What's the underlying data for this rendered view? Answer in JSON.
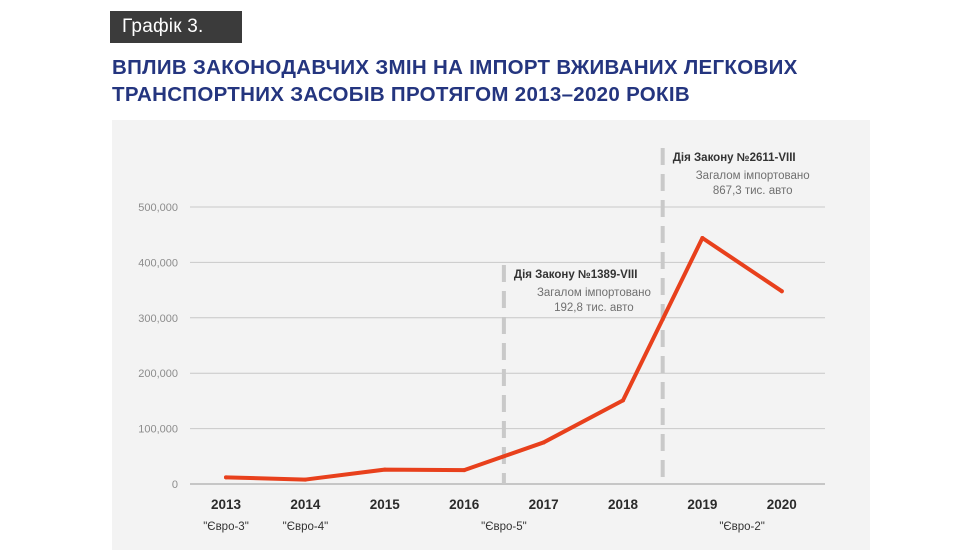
{
  "badge": "Графік 3.",
  "title": {
    "line1": "ВПЛИВ ЗАКОНОДАВЧИХ ЗМІН НА ІМПОРТ ВЖИВАНИХ ЛЕГКОВИХ",
    "line2": "ТРАНСПОРТНИХ ЗАСОБІВ ПРОТЯГОМ 2013–2020 РОКІВ"
  },
  "colors": {
    "line": "#e8401c",
    "grid": "#c8c8c8",
    "dashed_marker": "#c9c9c9",
    "title": "#24357f",
    "panel": "#f3f3f3"
  },
  "chart_data": {
    "type": "line",
    "title": "ВПЛИВ ЗАКОНОДАВЧИХ ЗМІН НА ІМПОРТ ВЖИВАНИХ ЛЕГКОВИХ ТРАНСПОРТНИХ ЗАСОБІВ ПРОТЯГОМ 2013–2020 РОКІВ",
    "xlabel": "",
    "ylabel": "",
    "categories": [
      "2013",
      "2014",
      "2015",
      "2016",
      "2017",
      "2018",
      "2019",
      "2020"
    ],
    "series": [
      {
        "values": [
          12000,
          8000,
          26000,
          25000,
          75000,
          151000,
          444000,
          348000
        ]
      }
    ],
    "ylim": [
      0,
      500000
    ],
    "yticks": [
      0,
      100000,
      200000,
      300000,
      400000,
      500000
    ],
    "ytick_labels": [
      "0",
      "100,000",
      "200,000",
      "300,000",
      "400,000",
      "500,000"
    ],
    "grid": true,
    "legend": "none",
    "euro_labels": [
      {
        "text": "\"Євро-3\"",
        "from": 0,
        "to": 0
      },
      {
        "text": "\"Євро-4\"",
        "from": 1,
        "to": 1
      },
      {
        "text": "\"Євро-5\"",
        "from": 2,
        "to": 5
      },
      {
        "text": "\"Євро-2\"",
        "from": 6,
        "to": 7
      }
    ],
    "annotations": [
      {
        "between": [
          3,
          4
        ],
        "heading": "Дія Закону №1389-VIII",
        "line1": "Загалом імпортовано",
        "line2": "192,8 тис. авто"
      },
      {
        "between": [
          5,
          6
        ],
        "heading": "Дія Закону №2611-VIII",
        "line1": "Загалом імпортовано",
        "line2": "867,3 тис. авто"
      }
    ]
  }
}
